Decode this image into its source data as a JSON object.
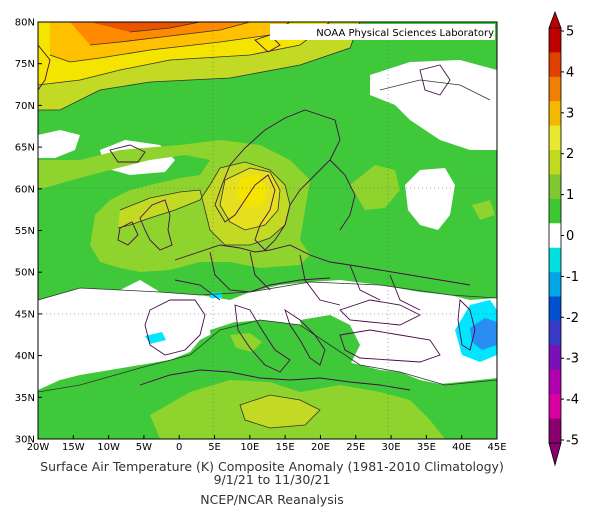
{
  "map": {
    "attribution": "NOAA Physical Sciences Laboratory",
    "title": {
      "line1": "Surface Air Temperature (K) Composite Anomaly (1981-2010 Climatology)",
      "line2": "9/1/21  to 11/30/21",
      "line3": "NCEP/NCAR Reanalysis"
    },
    "lat_labels": [
      "80N",
      "75N",
      "70N",
      "65N",
      "60N",
      "55N",
      "50N",
      "45N",
      "40N",
      "35N",
      "30N"
    ],
    "lon_labels": [
      "20W",
      "15W",
      "10W",
      "5W",
      "0",
      "5E",
      "10E",
      "15E",
      "20E",
      "25E",
      "30E",
      "35E",
      "40E",
      "45E"
    ],
    "extent": {
      "lon": [
        -20,
        45
      ],
      "lat": [
        30,
        80
      ]
    },
    "colorbar": {
      "labels": [
        "5",
        "4",
        "3",
        "2",
        "1",
        "0",
        "-1",
        "-2",
        "-3",
        "-4",
        "-5"
      ],
      "colors": [
        "#c00000",
        "#e04000",
        "#f08000",
        "#f5b800",
        "#e8e830",
        "#c0da1e",
        "#7fc832",
        "#3cc832",
        "#ffffff",
        "#00e0e0",
        "#00a6e6",
        "#0050d0",
        "#3a3ac8",
        "#7a10b8",
        "#b000b0",
        "#d800a0",
        "#8a0070"
      ]
    },
    "anomaly_colors": {
      "lt_neg1": "#2a8ef0",
      "neg1_to_0": "#00e6ff",
      "zero": "#ffffff",
      "p0_1": "#3ec83a",
      "p1_15": "#8ed32e",
      "p15_2": "#c2da24",
      "p2_25": "#e6df20",
      "p3": "#f5e400",
      "p35": "#ffc000",
      "p4": "#ff8a00",
      "p45": "#e85400"
    }
  }
}
